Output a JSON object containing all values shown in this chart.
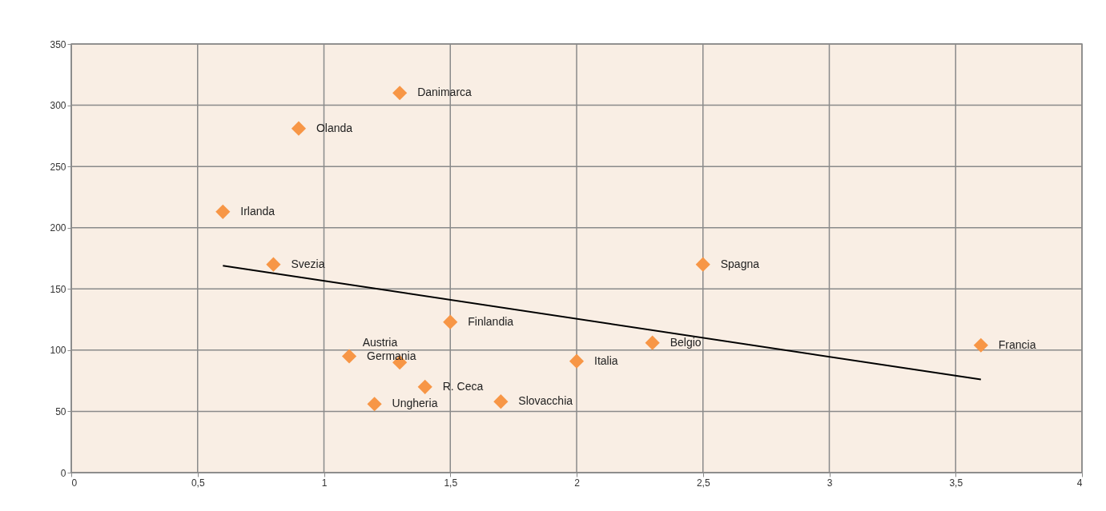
{
  "chart_data": {
    "type": "scatter",
    "marker": "diamond",
    "grid": true,
    "xlim": [
      0,
      4
    ],
    "xticks": [
      0,
      {
        "value": 0.5,
        "label": "0,5"
      },
      1,
      {
        "value": 1.5,
        "label": "1,5"
      },
      2,
      {
        "value": 2.5,
        "label": "2,5"
      },
      3,
      {
        "value": 3.5,
        "label": "3,5"
      },
      4
    ],
    "ylim": [
      0,
      350
    ],
    "yticks": [
      0,
      50,
      100,
      150,
      200,
      250,
      300,
      350
    ],
    "series": [
      {
        "color": "#f79646",
        "x": [
          1.3,
          0.9,
          0.6,
          0.8,
          2.5,
          1.5,
          2.3,
          3.6,
          1.1,
          1.3,
          2.0,
          1.4,
          1.2,
          1.7
        ],
        "values": [
          310,
          281,
          213,
          170,
          170,
          123,
          106,
          104,
          95,
          90,
          91,
          70,
          56,
          58
        ]
      },
      {
        "type": "line",
        "marker": "none",
        "color": "#000000",
        "x": [
          0.6,
          3.6
        ],
        "values": [
          169,
          76
        ]
      }
    ],
    "annotations": [
      {
        "text": "Danimarca",
        "x": 1.3,
        "y": 310
      },
      {
        "text": "Olanda",
        "x": 0.9,
        "y": 281
      },
      {
        "text": "Irlanda",
        "x": 0.6,
        "y": 213
      },
      {
        "text": "Svezia",
        "x": 0.8,
        "y": 170
      },
      {
        "text": "Spagna",
        "x": 2.5,
        "y": 170
      },
      {
        "text": "Finlandia",
        "x": 1.5,
        "y": 123
      },
      {
        "text": "Belgio",
        "x": 2.3,
        "y": 106
      },
      {
        "text": "Francia",
        "x": 3.6,
        "y": 104
      },
      {
        "text": "Germania",
        "x": 1.1,
        "y": 95
      },
      {
        "text": "Austria",
        "x": 1.3,
        "y": 90
      },
      {
        "text": "Italia",
        "x": 2.0,
        "y": 91
      },
      {
        "text": "R. Ceca",
        "x": 1.4,
        "y": 70
      },
      {
        "text": "Ungheria",
        "x": 1.2,
        "y": 56
      },
      {
        "text": "Slovacchia",
        "x": 1.7,
        "y": 58
      }
    ]
  }
}
